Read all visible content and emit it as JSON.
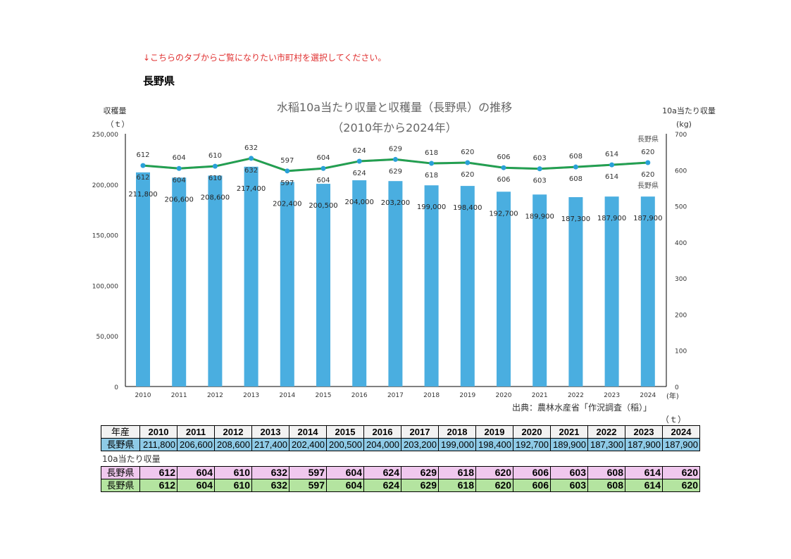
{
  "note": "↓こちらのタブからご覧になりたい市町村を選択してください。",
  "prefecture": "長野県",
  "chart_data": {
    "type": "bar+line",
    "title": "水稲10a当たり収量と収穫量（長野県）の推移",
    "subtitle": "（2010年から2024年）",
    "ylabel_left": "収穫量",
    "ylabel_left_unit": "（ｔ）",
    "ylabel_right": "10a当たり収量",
    "ylabel_right_unit": "(kg)",
    "xlabel_unit": "(年)",
    "ylim_left": [
      0,
      250000
    ],
    "ylim_right": [
      0,
      700
    ],
    "left_ticks": [
      "0",
      "50,000",
      "100,000",
      "150,000",
      "200,000",
      "250,000"
    ],
    "right_ticks": [
      "0",
      "100",
      "200",
      "300",
      "400",
      "500",
      "600",
      "700"
    ],
    "categories": [
      "2010",
      "2011",
      "2012",
      "2013",
      "2014",
      "2015",
      "2016",
      "2017",
      "2018",
      "2019",
      "2020",
      "2021",
      "2022",
      "2023",
      "2024"
    ],
    "series": [
      {
        "name": "収穫量",
        "type": "bar",
        "color": "#4aaee0",
        "values": [
          211800,
          206600,
          208600,
          217400,
          202400,
          200500,
          204000,
          203200,
          199000,
          198400,
          192700,
          189900,
          187300,
          187900,
          187900
        ],
        "labels": [
          "211,800",
          "206,600",
          "208,600",
          "217,400",
          "202,400",
          "200,500",
          "204,000",
          "203,200",
          "199,000",
          "198,400",
          "192,700",
          "189,900",
          "187,300",
          "187,900",
          "187,900"
        ]
      },
      {
        "name": "長野県",
        "type": "line",
        "color": "#e8a0e0",
        "values": [
          612,
          604,
          610,
          632,
          597,
          604,
          624,
          629,
          618,
          620,
          606,
          603,
          608,
          614,
          620
        ]
      },
      {
        "name": "長野県",
        "type": "line",
        "color": "#22a050",
        "values": [
          612,
          604,
          610,
          632,
          597,
          604,
          624,
          629,
          618,
          620,
          606,
          603,
          608,
          614,
          620
        ]
      }
    ],
    "source": "出典：農林水産省「作況調査（稲）」"
  },
  "table": {
    "header_label": "年産",
    "years": [
      "2010",
      "2011",
      "2012",
      "2013",
      "2014",
      "2015",
      "2016",
      "2017",
      "2018",
      "2019",
      "2020",
      "2021",
      "2022",
      "2023",
      "2024"
    ],
    "harvest_row": {
      "label": "長野県",
      "values": [
        "211,800",
        "206,600",
        "208,600",
        "217,400",
        "202,400",
        "200,500",
        "204,000",
        "203,200",
        "199,000",
        "198,400",
        "192,700",
        "189,900",
        "187,300",
        "187,900",
        "187,900"
      ]
    },
    "unit": "（ｔ）",
    "yield_title": "10a当たり収量",
    "yield_rows": [
      {
        "label": "長野県",
        "values": [
          "612",
          "604",
          "610",
          "632",
          "597",
          "604",
          "624",
          "629",
          "618",
          "620",
          "606",
          "603",
          "608",
          "614",
          "620"
        ]
      },
      {
        "label": "長野県",
        "values": [
          "612",
          "604",
          "610",
          "632",
          "597",
          "604",
          "624",
          "629",
          "618",
          "620",
          "606",
          "603",
          "608",
          "614",
          "620"
        ]
      }
    ]
  }
}
